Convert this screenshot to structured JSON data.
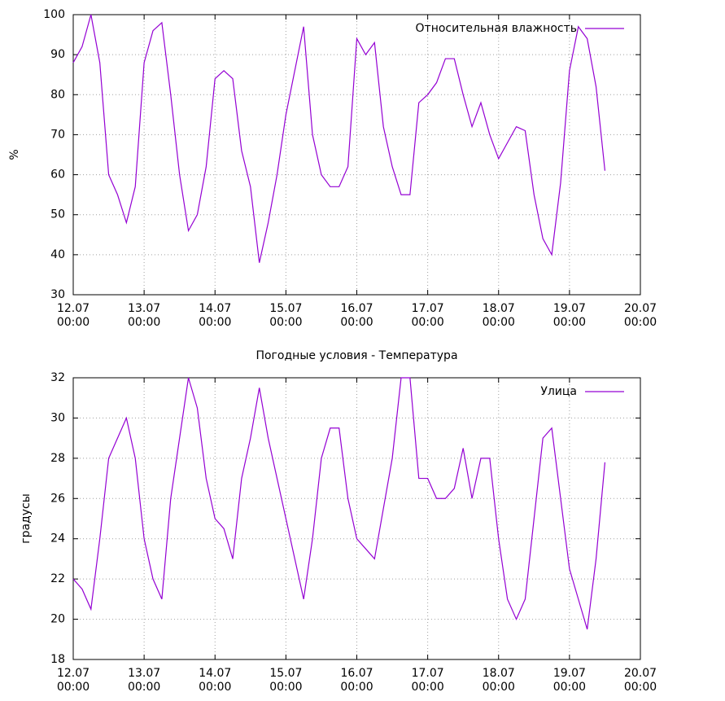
{
  "chart_data": [
    {
      "type": "line",
      "ylabel": "%",
      "ylim": [
        30,
        100
      ],
      "yticks": [
        30,
        40,
        50,
        60,
        70,
        80,
        90,
        100
      ],
      "xlim": [
        "12.07\n00:00",
        "20.07\n00:00"
      ],
      "xticks": [
        "12.07\n00:00",
        "13.07\n00:00",
        "14.07\n00:00",
        "15.07\n00:00",
        "16.07\n00:00",
        "17.07\n00:00",
        "18.07\n00:00",
        "19.07\n00:00",
        "20.07\n00:00"
      ],
      "grid": true,
      "legend": "top right",
      "x": [
        "12.07 00:00",
        "12.07 03:00",
        "12.07 06:00",
        "12.07 09:00",
        "12.07 12:00",
        "12.07 15:00",
        "12.07 18:00",
        "12.07 21:00",
        "13.07 00:00",
        "13.07 03:00",
        "13.07 06:00",
        "13.07 09:00",
        "13.07 12:00",
        "13.07 15:00",
        "13.07 18:00",
        "13.07 21:00",
        "14.07 00:00",
        "14.07 03:00",
        "14.07 06:00",
        "14.07 09:00",
        "14.07 12:00",
        "14.07 15:00",
        "14.07 18:00",
        "14.07 21:00",
        "15.07 00:00",
        "15.07 03:00",
        "15.07 06:00",
        "15.07 09:00",
        "15.07 12:00",
        "15.07 15:00",
        "15.07 18:00",
        "15.07 21:00",
        "16.07 00:00",
        "16.07 03:00",
        "16.07 06:00",
        "16.07 09:00",
        "16.07 12:00",
        "16.07 15:00",
        "16.07 18:00",
        "16.07 21:00",
        "17.07 00:00",
        "17.07 03:00",
        "17.07 06:00",
        "17.07 09:00",
        "17.07 12:00",
        "17.07 15:00",
        "17.07 18:00",
        "17.07 21:00",
        "18.07 00:00",
        "18.07 03:00",
        "18.07 06:00",
        "18.07 09:00",
        "18.07 12:00",
        "18.07 15:00",
        "18.07 18:00",
        "18.07 21:00",
        "19.07 00:00",
        "19.07 03:00",
        "19.07 06:00",
        "19.07 09:00",
        "19.07 12:00"
      ],
      "series": [
        {
          "name": "Относительная влажность",
          "color": "#9400d3",
          "values": [
            88,
            92,
            100,
            88,
            60,
            55,
            48,
            57,
            88,
            96,
            98,
            80,
            60,
            46,
            50,
            62,
            84,
            86,
            84,
            66,
            57,
            38,
            48,
            60,
            75,
            86,
            97,
            70,
            60,
            57,
            57,
            62,
            94,
            90,
            93,
            72,
            62,
            55,
            55,
            78,
            80,
            83,
            89,
            89,
            80,
            72,
            78,
            70,
            64,
            68,
            72,
            71,
            55,
            44,
            40,
            58,
            86,
            97,
            94,
            82,
            61
          ]
        }
      ]
    },
    {
      "type": "line",
      "title": "Погодные условия - Температура",
      "ylabel": "градусы",
      "ylim": [
        18,
        32
      ],
      "yticks": [
        18,
        20,
        22,
        24,
        26,
        28,
        30,
        32
      ],
      "xlim": [
        "12.07\n00:00",
        "20.07\n00:00"
      ],
      "xticks": [
        "12.07\n00:00",
        "13.07\n00:00",
        "14.07\n00:00",
        "15.07\n00:00",
        "16.07\n00:00",
        "17.07\n00:00",
        "18.07\n00:00",
        "19.07\n00:00",
        "20.07\n00:00"
      ],
      "grid": true,
      "legend": "top right",
      "x": [
        "12.07 00:00",
        "12.07 03:00",
        "12.07 06:00",
        "12.07 09:00",
        "12.07 12:00",
        "12.07 15:00",
        "12.07 18:00",
        "12.07 21:00",
        "13.07 00:00",
        "13.07 03:00",
        "13.07 06:00",
        "13.07 09:00",
        "13.07 12:00",
        "13.07 15:00",
        "13.07 18:00",
        "13.07 21:00",
        "14.07 00:00",
        "14.07 03:00",
        "14.07 06:00",
        "14.07 09:00",
        "14.07 12:00",
        "14.07 15:00",
        "14.07 18:00",
        "14.07 21:00",
        "15.07 00:00",
        "15.07 03:00",
        "15.07 06:00",
        "15.07 09:00",
        "15.07 12:00",
        "15.07 15:00",
        "15.07 18:00",
        "15.07 21:00",
        "16.07 00:00",
        "16.07 03:00",
        "16.07 06:00",
        "16.07 09:00",
        "16.07 12:00",
        "16.07 15:00",
        "16.07 18:00",
        "16.07 21:00",
        "17.07 00:00",
        "17.07 03:00",
        "17.07 06:00",
        "17.07 09:00",
        "17.07 12:00",
        "17.07 15:00",
        "17.07 18:00",
        "17.07 21:00",
        "18.07 00:00",
        "18.07 03:00",
        "18.07 06:00",
        "18.07 09:00",
        "18.07 12:00",
        "18.07 15:00",
        "18.07 18:00",
        "18.07 21:00",
        "19.07 00:00",
        "19.07 03:00",
        "19.07 06:00",
        "19.07 09:00",
        "19.07 12:00"
      ],
      "series": [
        {
          "name": "Улица",
          "color": "#9400d3",
          "values": [
            22,
            21.5,
            20.5,
            24,
            28,
            29,
            30,
            28,
            24,
            22,
            21,
            26,
            29,
            32,
            30.5,
            27,
            25,
            24.5,
            23,
            27,
            29,
            31.5,
            29,
            27,
            25,
            23,
            21,
            24,
            28,
            29.5,
            29.5,
            26,
            24,
            23.5,
            23,
            25.5,
            28,
            32,
            32,
            27,
            27,
            26,
            26,
            26.5,
            28.5,
            26,
            28,
            28,
            24,
            21,
            20,
            21,
            25,
            29,
            29.5,
            26,
            22.5,
            21,
            19.5,
            23,
            27.8
          ]
        }
      ]
    }
  ]
}
